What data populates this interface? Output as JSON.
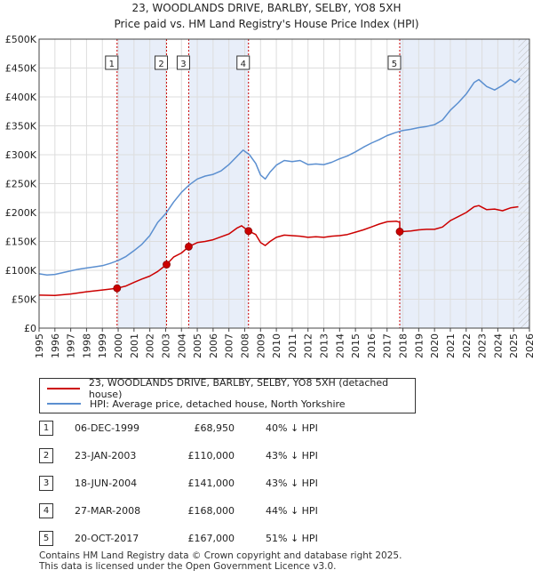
{
  "chart_data": {
    "type": "line",
    "title": "23, WOODLANDS DRIVE, BARLBY, SELBY, YO8 5XH",
    "subtitle": "Price paid vs. HM Land Registry's House Price Index (HPI)",
    "xlim": [
      1995,
      2026
    ],
    "ylim": [
      0,
      500000
    ],
    "x_ticks": [
      "1995",
      "1996",
      "1997",
      "1998",
      "1999",
      "2000",
      "2001",
      "2002",
      "2003",
      "2004",
      "2005",
      "2006",
      "2007",
      "2008",
      "2009",
      "2010",
      "2011",
      "2012",
      "2013",
      "2014",
      "2015",
      "2016",
      "2017",
      "2018",
      "2019",
      "2020",
      "2021",
      "2022",
      "2023",
      "2024",
      "2025",
      "2026"
    ],
    "y_ticks": [
      {
        "value": 0,
        "label": "£0"
      },
      {
        "value": 50000,
        "label": "£50K"
      },
      {
        "value": 100000,
        "label": "£100K"
      },
      {
        "value": 150000,
        "label": "£150K"
      },
      {
        "value": 200000,
        "label": "£200K"
      },
      {
        "value": 250000,
        "label": "£250K"
      },
      {
        "value": 300000,
        "label": "£300K"
      },
      {
        "value": 350000,
        "label": "£350K"
      },
      {
        "value": 400000,
        "label": "£400K"
      },
      {
        "value": 450000,
        "label": "£450K"
      },
      {
        "value": 500000,
        "label": "£500K"
      }
    ],
    "series": [
      {
        "name": "23, WOODLANDS DRIVE, BARLBY, SELBY, YO8 5XH (detached house)",
        "color": "#cc0000",
        "points": [
          [
            1995.0,
            57000
          ],
          [
            1996.0,
            56500
          ],
          [
            1997.0,
            59000
          ],
          [
            1998.0,
            63000
          ],
          [
            1999.0,
            66000
          ],
          [
            1999.92,
            68950
          ],
          [
            2000.5,
            73000
          ],
          [
            2001.0,
            79000
          ],
          [
            2001.5,
            85000
          ],
          [
            2002.0,
            90000
          ],
          [
            2002.5,
            98000
          ],
          [
            2003.06,
            110000
          ],
          [
            2003.5,
            123000
          ],
          [
            2004.0,
            130000
          ],
          [
            2004.46,
            141000
          ],
          [
            2005.0,
            148000
          ],
          [
            2005.5,
            150000
          ],
          [
            2006.0,
            153000
          ],
          [
            2006.5,
            158000
          ],
          [
            2007.0,
            163000
          ],
          [
            2007.5,
            173000
          ],
          [
            2007.8,
            177000
          ],
          [
            2008.24,
            168000
          ],
          [
            2008.7,
            162000
          ],
          [
            2009.0,
            148000
          ],
          [
            2009.3,
            143000
          ],
          [
            2009.6,
            150000
          ],
          [
            2010.0,
            157000
          ],
          [
            2010.5,
            161000
          ],
          [
            2011.0,
            160000
          ],
          [
            2011.5,
            159000
          ],
          [
            2012.0,
            157000
          ],
          [
            2012.5,
            158000
          ],
          [
            2013.0,
            157000
          ],
          [
            2013.5,
            159000
          ],
          [
            2014.0,
            160000
          ],
          [
            2014.5,
            162000
          ],
          [
            2015.0,
            166000
          ],
          [
            2015.5,
            170000
          ],
          [
            2016.0,
            175000
          ],
          [
            2016.5,
            180000
          ],
          [
            2017.0,
            184000
          ],
          [
            2017.6,
            185000
          ],
          [
            2017.8,
            183000
          ],
          [
            2017.8,
            167000
          ],
          [
            2018.0,
            167000
          ],
          [
            2018.5,
            168000
          ],
          [
            2019.0,
            170000
          ],
          [
            2019.5,
            171000
          ],
          [
            2020.0,
            171000
          ],
          [
            2020.5,
            175000
          ],
          [
            2021.0,
            186000
          ],
          [
            2021.5,
            193000
          ],
          [
            2022.0,
            200000
          ],
          [
            2022.5,
            210000
          ],
          [
            2022.8,
            212000
          ],
          [
            2023.3,
            205000
          ],
          [
            2023.8,
            206000
          ],
          [
            2024.3,
            203000
          ],
          [
            2024.8,
            208000
          ],
          [
            2025.3,
            210000
          ]
        ]
      },
      {
        "name": "HPI: Average price, detached house, North Yorkshire",
        "color": "#5b8fd0",
        "points": [
          [
            1995.0,
            94000
          ],
          [
            1995.5,
            92000
          ],
          [
            1996.0,
            93000
          ],
          [
            1996.5,
            96000
          ],
          [
            1997.0,
            99000
          ],
          [
            1997.5,
            102000
          ],
          [
            1998.0,
            104000
          ],
          [
            1998.5,
            106000
          ],
          [
            1999.0,
            108000
          ],
          [
            1999.5,
            112000
          ],
          [
            2000.0,
            117000
          ],
          [
            2000.5,
            124000
          ],
          [
            2001.0,
            134000
          ],
          [
            2001.5,
            145000
          ],
          [
            2002.0,
            160000
          ],
          [
            2002.5,
            183000
          ],
          [
            2003.0,
            198000
          ],
          [
            2003.5,
            218000
          ],
          [
            2004.0,
            235000
          ],
          [
            2004.5,
            248000
          ],
          [
            2005.0,
            258000
          ],
          [
            2005.5,
            263000
          ],
          [
            2006.0,
            266000
          ],
          [
            2006.5,
            272000
          ],
          [
            2007.0,
            283000
          ],
          [
            2007.5,
            297000
          ],
          [
            2007.9,
            308000
          ],
          [
            2008.3,
            300000
          ],
          [
            2008.7,
            285000
          ],
          [
            2009.0,
            265000
          ],
          [
            2009.3,
            258000
          ],
          [
            2009.6,
            270000
          ],
          [
            2010.0,
            282000
          ],
          [
            2010.5,
            290000
          ],
          [
            2011.0,
            288000
          ],
          [
            2011.5,
            290000
          ],
          [
            2012.0,
            283000
          ],
          [
            2012.5,
            284000
          ],
          [
            2013.0,
            283000
          ],
          [
            2013.5,
            287000
          ],
          [
            2014.0,
            293000
          ],
          [
            2014.5,
            298000
          ],
          [
            2015.0,
            305000
          ],
          [
            2015.5,
            313000
          ],
          [
            2016.0,
            320000
          ],
          [
            2016.5,
            326000
          ],
          [
            2017.0,
            333000
          ],
          [
            2017.5,
            338000
          ],
          [
            2018.0,
            342000
          ],
          [
            2018.5,
            344000
          ],
          [
            2019.0,
            347000
          ],
          [
            2019.5,
            349000
          ],
          [
            2020.0,
            352000
          ],
          [
            2020.5,
            360000
          ],
          [
            2021.0,
            377000
          ],
          [
            2021.5,
            390000
          ],
          [
            2022.0,
            405000
          ],
          [
            2022.5,
            425000
          ],
          [
            2022.8,
            430000
          ],
          [
            2023.3,
            418000
          ],
          [
            2023.8,
            412000
          ],
          [
            2024.3,
            420000
          ],
          [
            2024.8,
            430000
          ],
          [
            2025.1,
            425000
          ],
          [
            2025.4,
            432000
          ]
        ]
      }
    ],
    "sales": [
      {
        "num": "1",
        "date": "06-DEC-1999",
        "price": "£68,950",
        "hpi": "40% ↓ HPI",
        "x": 1999.93,
        "y": 68950
      },
      {
        "num": "2",
        "date": "23-JAN-2003",
        "price": "£110,000",
        "hpi": "43% ↓ HPI",
        "x": 2003.06,
        "y": 110000
      },
      {
        "num": "3",
        "date": "18-JUN-2004",
        "price": "£141,000",
        "hpi": "43% ↓ HPI",
        "x": 2004.46,
        "y": 141000
      },
      {
        "num": "4",
        "date": "27-MAR-2008",
        "price": "£168,000",
        "hpi": "44% ↓ HPI",
        "x": 2008.24,
        "y": 168000
      },
      {
        "num": "5",
        "date": "20-OCT-2017",
        "price": "£167,000",
        "hpi": "51% ↓ HPI",
        "x": 2017.8,
        "y": 167000
      }
    ],
    "shaded_ranges": [
      [
        1999.93,
        2003.06
      ],
      [
        2004.46,
        2008.24
      ],
      [
        2017.8,
        2026
      ]
    ],
    "hatch_from": 2025.3,
    "colors": {
      "shade": "#e8eef9",
      "grid": "#dddddd",
      "vline": "#cc0000"
    }
  },
  "legend": {
    "property_label": "23, WOODLANDS DRIVE, BARLBY, SELBY, YO8 5XH (detached house)",
    "hpi_label": "HPI: Average price, detached house, North Yorkshire"
  },
  "footer": {
    "line1": "Contains HM Land Registry data © Crown copyright and database right 2025.",
    "line2": "This data is licensed under the Open Government Licence v3.0."
  }
}
